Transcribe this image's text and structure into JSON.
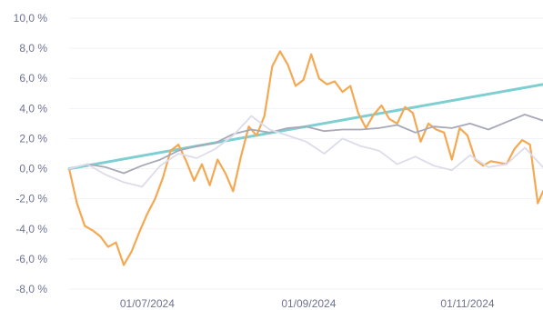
{
  "chart_data": {
    "type": "line",
    "ylim": [
      -8,
      10
    ],
    "y_ticks": [
      "10,0 %",
      "8,0 %",
      "6,0 %",
      "4,0 %",
      "2,0 %",
      "0,0 %",
      "-2,0 %",
      "-4,0 %",
      "-6,0 %",
      "-8,0 %"
    ],
    "y_tick_values": [
      10,
      8,
      6,
      4,
      2,
      0,
      -2,
      -4,
      -6,
      -8
    ],
    "x_ticks": [
      "01/07/2024",
      "01/09/2024",
      "01/11/2024"
    ],
    "x_tick_dates": [
      "2024-07-01",
      "2024-09-01",
      "2024-11-01"
    ],
    "x_range": [
      "2024-06-01",
      "2024-11-30"
    ],
    "grid": true,
    "legend": "none",
    "series": [
      {
        "color": "#7ecfd1",
        "x": [
          "2024-06-01",
          "2024-11-30"
        ],
        "values": [
          0.0,
          5.6
        ]
      },
      {
        "color": "#f5a852",
        "x": [
          "2024-06-01",
          "2024-06-04",
          "2024-06-07",
          "2024-06-10",
          "2024-06-13",
          "2024-06-16",
          "2024-06-19",
          "2024-06-22",
          "2024-06-25",
          "2024-06-28",
          "2024-07-01",
          "2024-07-04",
          "2024-07-07",
          "2024-07-10",
          "2024-07-13",
          "2024-07-16",
          "2024-07-19",
          "2024-07-22",
          "2024-07-25",
          "2024-07-28",
          "2024-07-31",
          "2024-08-03",
          "2024-08-06",
          "2024-08-09",
          "2024-08-12",
          "2024-08-15",
          "2024-08-18",
          "2024-08-21",
          "2024-08-24",
          "2024-08-27",
          "2024-08-30",
          "2024-09-02",
          "2024-09-05",
          "2024-09-08",
          "2024-09-11",
          "2024-09-14",
          "2024-09-17",
          "2024-09-20",
          "2024-09-23",
          "2024-09-26",
          "2024-09-29",
          "2024-10-02",
          "2024-10-05",
          "2024-10-08",
          "2024-10-11",
          "2024-10-14",
          "2024-10-17",
          "2024-10-20",
          "2024-10-23",
          "2024-10-26",
          "2024-10-29",
          "2024-11-01",
          "2024-11-04",
          "2024-11-07",
          "2024-11-10",
          "2024-11-13",
          "2024-11-16",
          "2024-11-19",
          "2024-11-22",
          "2024-11-25",
          "2024-11-28",
          "2024-11-30"
        ],
        "values": [
          0.0,
          -2.3,
          -3.8,
          -4.1,
          -4.5,
          -5.2,
          -4.9,
          -6.4,
          -5.5,
          -4.2,
          -3.0,
          -2.0,
          -0.6,
          1.2,
          1.6,
          0.5,
          -0.8,
          0.3,
          -1.1,
          0.6,
          -0.3,
          -1.5,
          0.8,
          2.8,
          2.2,
          3.5,
          6.8,
          7.8,
          6.9,
          5.5,
          5.9,
          7.6,
          6.0,
          5.6,
          5.8,
          5.1,
          5.5,
          3.7,
          2.7,
          3.6,
          4.2,
          3.3,
          3.0,
          4.1,
          3.7,
          1.8,
          3.0,
          2.6,
          2.4,
          0.6,
          2.7,
          2.2,
          0.6,
          0.2,
          0.5,
          0.4,
          0.3,
          1.3,
          1.9,
          1.6,
          -2.3,
          -1.5
        ]
      },
      {
        "color": "#a7a9b8",
        "x": [
          "2024-06-01",
          "2024-06-08",
          "2024-06-15",
          "2024-06-22",
          "2024-06-29",
          "2024-07-06",
          "2024-07-13",
          "2024-07-20",
          "2024-07-27",
          "2024-08-03",
          "2024-08-10",
          "2024-08-17",
          "2024-08-24",
          "2024-08-31",
          "2024-09-07",
          "2024-09-14",
          "2024-09-21",
          "2024-09-28",
          "2024-10-05",
          "2024-10-12",
          "2024-10-19",
          "2024-10-26",
          "2024-11-02",
          "2024-11-09",
          "2024-11-16",
          "2024-11-23",
          "2024-11-30"
        ],
        "values": [
          0.0,
          0.3,
          0.1,
          -0.3,
          0.2,
          0.6,
          1.2,
          1.5,
          1.7,
          2.3,
          2.6,
          2.4,
          2.7,
          2.8,
          2.5,
          2.6,
          2.6,
          2.7,
          2.9,
          2.4,
          2.8,
          2.7,
          3.0,
          2.6,
          3.1,
          3.6,
          3.2
        ]
      },
      {
        "color": "#dcdcea",
        "x": [
          "2024-06-01",
          "2024-06-08",
          "2024-06-15",
          "2024-06-22",
          "2024-06-29",
          "2024-07-06",
          "2024-07-13",
          "2024-07-20",
          "2024-07-27",
          "2024-08-03",
          "2024-08-10",
          "2024-08-17",
          "2024-08-24",
          "2024-08-31",
          "2024-09-07",
          "2024-09-14",
          "2024-09-21",
          "2024-09-28",
          "2024-10-05",
          "2024-10-12",
          "2024-10-19",
          "2024-10-26",
          "2024-11-02",
          "2024-11-09",
          "2024-11-16",
          "2024-11-23",
          "2024-11-30"
        ],
        "values": [
          0.0,
          0.3,
          -0.4,
          -0.9,
          -1.2,
          0.2,
          1.0,
          0.7,
          1.3,
          2.2,
          3.5,
          2.6,
          2.2,
          1.8,
          1.0,
          2.0,
          1.5,
          1.2,
          0.3,
          0.8,
          0.2,
          -0.1,
          0.9,
          0.1,
          0.3,
          1.4,
          0.1
        ]
      }
    ]
  }
}
